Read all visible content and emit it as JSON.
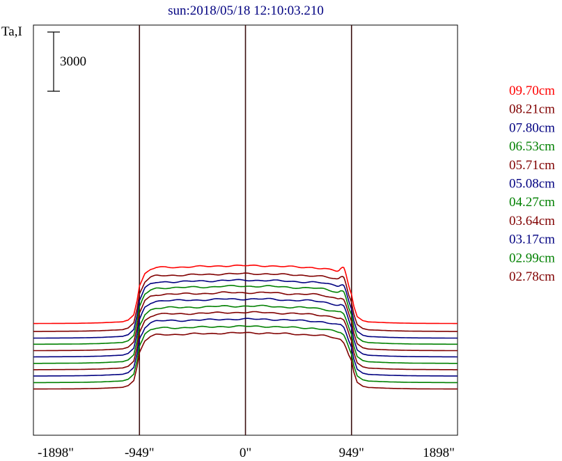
{
  "chart_data": {
    "type": "line",
    "title": "sun:2018/05/18 12:10:03.210",
    "ylabel": "Ta,I",
    "xlim": [
      -1898,
      1898
    ],
    "x_ticks": [
      {
        "value": -1898,
        "label": "-1898\""
      },
      {
        "value": -949,
        "label": "-949\""
      },
      {
        "value": 0,
        "label": "0\""
      },
      {
        "value": 949,
        "label": "949\""
      },
      {
        "value": 1898,
        "label": "1898\""
      }
    ],
    "vertical_lines": [
      -949,
      0,
      949
    ],
    "scale_bar": {
      "value": 3000,
      "label": "3000"
    },
    "legend_position": "right",
    "x": [
      -1898,
      -1500,
      -1300,
      -1100,
      -1050,
      -1000,
      -970,
      -949,
      -900,
      -850,
      -800,
      -700,
      -600,
      -500,
      -400,
      -300,
      -200,
      -100,
      0,
      100,
      200,
      300,
      400,
      500,
      600,
      700,
      750,
      800,
      850,
      880,
      900,
      949,
      970,
      1000,
      1050,
      1100,
      1300,
      1500,
      1898
    ],
    "profile": [
      0,
      0.004,
      0.012,
      0.03,
      0.06,
      0.15,
      0.4,
      0.65,
      0.86,
      0.935,
      0.965,
      0.975,
      0.975,
      0.982,
      0.985,
      0.99,
      1.0,
      1.0,
      1.0,
      1.0,
      1.0,
      0.99,
      0.98,
      0.975,
      0.97,
      0.95,
      0.93,
      0.91,
      0.88,
      0.82,
      0.74,
      0.5,
      0.3,
      0.12,
      0.05,
      0.028,
      0.012,
      0.004,
      0
    ],
    "series": [
      {
        "name": "09.70cm",
        "color": "#ff0000",
        "base": 1850,
        "amp": 2930,
        "peak": 420
      },
      {
        "name": "08.21cm",
        "color": "#800000",
        "base": 1450,
        "amp": 2920,
        "peak": 360
      },
      {
        "name": "07.80cm",
        "color": "#000080",
        "base": 1110,
        "amp": 2930,
        "peak": 300
      },
      {
        "name": "06.53cm",
        "color": "#008000",
        "base": 800,
        "amp": 2940,
        "peak": 250
      },
      {
        "name": "05.71cm",
        "color": "#800000",
        "base": 475,
        "amp": 2940,
        "peak": 200
      },
      {
        "name": "05.08cm",
        "color": "#000080",
        "base": 160,
        "amp": 2930,
        "peak": 150
      },
      {
        "name": "04.27cm",
        "color": "#008000",
        "base": -170,
        "amp": 2900,
        "peak": 120
      },
      {
        "name": "03.64cm",
        "color": "#800000",
        "base": -490,
        "amp": 2900,
        "peak": 100
      },
      {
        "name": "03.17cm",
        "color": "#000080",
        "base": -810,
        "amp": 2880,
        "peak": 90
      },
      {
        "name": "02.99cm",
        "color": "#008000",
        "base": -1145,
        "amp": 2850,
        "peak": 80
      },
      {
        "name": "02.78cm",
        "color": "#800000",
        "base": -1470,
        "amp": 2840,
        "peak": 0
      }
    ]
  }
}
